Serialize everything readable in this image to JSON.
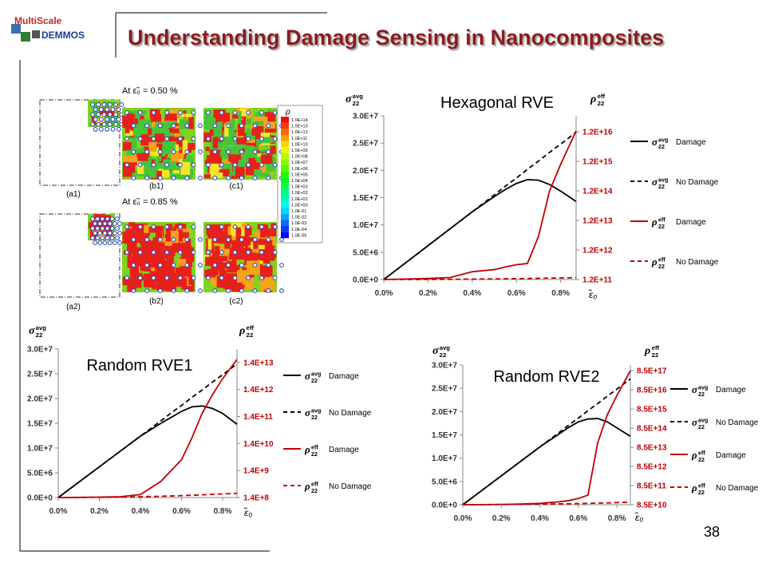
{
  "header": {
    "title": "Understanding Damage Sensing in Nanocomposites",
    "logo_top": "MultiScale",
    "logo_bottom": "DEMMOS"
  },
  "figure": {
    "row1_caption": "At ε̃₀ = 0.50 %",
    "row2_caption": "At ε̃₀ = 0.85 %",
    "panels": [
      "(a1)",
      "(b1)",
      "(c1)",
      "(a2)",
      "(b2)",
      "(c2)"
    ],
    "colorbar": {
      "title": "ρ",
      "labels": [
        "1.0E+14",
        "1.0E+13",
        "1.0E+12",
        "1.0E+11",
        "1.0E+10",
        "1.0E+09",
        "1.0E+08",
        "1.0E+07",
        "1.0E+06",
        "1.0E+05",
        "1.0E+04",
        "1.0E+03",
        "1.0E+02",
        "1.0E+01",
        "1.0E+00",
        "1.0E-01",
        "1.0E-02",
        "1.0E-03",
        "1.0E-04",
        "1.0E-05"
      ]
    }
  },
  "chart_data": [
    {
      "type": "line",
      "title": "Hexagonal RVE",
      "x": [
        0,
        0.1,
        0.2,
        0.3,
        0.4,
        0.5,
        0.55,
        0.6,
        0.65,
        0.7,
        0.75,
        0.8,
        0.87
      ],
      "xlim": [
        0,
        0.87
      ],
      "xticks": [
        {
          "value": 0,
          "label": "0.0%"
        },
        {
          "value": 0.2,
          "label": "0.2%"
        },
        {
          "value": 0.4,
          "label": "0.4%"
        },
        {
          "value": 0.6,
          "label": "0.6%"
        },
        {
          "value": 0.8,
          "label": "0.8%"
        }
      ],
      "x_label": "ε̃₀",
      "ylim": [
        0,
        30000000
      ],
      "yticks": [
        {
          "value": 0,
          "label": "0.0E+0"
        },
        {
          "value": 5000000,
          "label": "5.0E+6"
        },
        {
          "value": 10000000,
          "label": "1.0E+7"
        },
        {
          "value": 15000000,
          "label": "1.5E+7"
        },
        {
          "value": 20000000,
          "label": "2.0E+7"
        },
        {
          "value": 25000000,
          "label": "2.5E+7"
        },
        {
          "value": 30000000,
          "label": "3.0E+7"
        }
      ],
      "y_label": {
        "base": "σ",
        "sup": "avg",
        "sub": "22"
      },
      "y2lim": [
        120000000000,
        42000000000000000
      ],
      "y2_log": true,
      "y2_color": "#c00000",
      "y2ticks": [
        {
          "value": 120000000000,
          "label": "1.2E+11"
        },
        {
          "value": 1200000000000,
          "label": "1.2E+12"
        },
        {
          "value": 12000000000000,
          "label": "1.2E+13"
        },
        {
          "value": 120000000000000,
          "label": "1.2E+14"
        },
        {
          "value": 1200000000000000,
          "label": "1.2E+15"
        },
        {
          "value": 12000000000000000,
          "label": "1.2E+16"
        }
      ],
      "y2_label": {
        "base": "ρ",
        "sup": "eff",
        "sub": "22"
      },
      "series": [
        {
          "name": "Damage",
          "symbol": {
            "base": "σ",
            "sup": "avg",
            "sub": "22"
          },
          "color": "#000000",
          "dash": false,
          "values": [
            0,
            3100000,
            6200000,
            9300000,
            12400000,
            15200000,
            16500000,
            17600000,
            18300000,
            18200000,
            17400000,
            16200000,
            14300000
          ]
        },
        {
          "name": "No Damage",
          "symbol": {
            "base": "σ",
            "sup": "avg",
            "sub": "22"
          },
          "color": "#000000",
          "dash": true,
          "values": [
            0,
            3100000,
            6200000,
            9300000,
            12400000,
            15500000,
            17100000,
            18600000,
            20200000,
            21700000,
            23300000,
            24800000,
            27000000
          ]
        },
        {
          "name": "Damage",
          "symbol": {
            "base": "ρ",
            "sup": "eff",
            "sub": "22"
          },
          "color": "#c00000",
          "dash": false,
          "axis": "y2",
          "values": [
            120000000000,
            125000000000,
            130000000000,
            140000000000,
            220000000000,
            260000000000,
            320000000000,
            380000000000,
            420000000000,
            3500000000000,
            120000000000000,
            950000000000000,
            13000000000000000
          ]
        },
        {
          "name": "No Damage",
          "symbol": {
            "base": "ρ",
            "sup": "eff",
            "sub": "22"
          },
          "color": "#c00000",
          "dash": true,
          "axis": "y2",
          "values": [
            120000000000,
            120000000000,
            121000000000,
            122000000000,
            124000000000,
            126000000000,
            127000000000,
            128000000000,
            130000000000,
            132000000000,
            134000000000,
            136000000000,
            138000000000
          ]
        }
      ]
    },
    {
      "type": "line",
      "title": "Random RVE1",
      "x": [
        0,
        0.1,
        0.2,
        0.3,
        0.4,
        0.5,
        0.55,
        0.6,
        0.65,
        0.7,
        0.75,
        0.8,
        0.87
      ],
      "xlim": [
        0,
        0.87
      ],
      "xticks": [
        {
          "value": 0,
          "label": "0.0%"
        },
        {
          "value": 0.2,
          "label": "0.2%"
        },
        {
          "value": 0.4,
          "label": "0.4%"
        },
        {
          "value": 0.6,
          "label": "0.6%"
        },
        {
          "value": 0.8,
          "label": "0.8%"
        }
      ],
      "x_label": "ε̃₀",
      "ylim": [
        0,
        30000000
      ],
      "yticks": [
        {
          "value": 0,
          "label": "0.0E+0"
        },
        {
          "value": 5000000,
          "label": "5.0E+6"
        },
        {
          "value": 10000000,
          "label": "1.0E+7"
        },
        {
          "value": 15000000,
          "label": "1.5E+7"
        },
        {
          "value": 20000000,
          "label": "2.0E+7"
        },
        {
          "value": 25000000,
          "label": "2.5E+7"
        },
        {
          "value": 30000000,
          "label": "3.0E+7"
        }
      ],
      "y_label": {
        "base": "σ",
        "sup": "avg",
        "sub": "22"
      },
      "y2lim": [
        140000000,
        44000000000000
      ],
      "y2_log": true,
      "y2_color": "#c00000",
      "y2ticks": [
        {
          "value": 140000000,
          "label": "1.4E+8"
        },
        {
          "value": 1400000000,
          "label": "1.4E+9"
        },
        {
          "value": 14000000000,
          "label": "1.4E+10"
        },
        {
          "value": 140000000000,
          "label": "1.4E+11"
        },
        {
          "value": 1400000000000,
          "label": "1.4E+12"
        },
        {
          "value": 14000000000000,
          "label": "1.4E+13"
        }
      ],
      "y2_label": {
        "base": "ρ",
        "sup": "eff",
        "sub": "22"
      },
      "series": [
        {
          "name": "Damage",
          "symbol": {
            "base": "σ",
            "sup": "avg",
            "sub": "22"
          },
          "color": "#000000",
          "dash": false,
          "values": [
            0,
            3100000,
            6200000,
            9300000,
            12400000,
            15000000,
            16200000,
            17400000,
            18300000,
            18500000,
            18000000,
            17000000,
            14800000
          ]
        },
        {
          "name": "No Damage",
          "symbol": {
            "base": "σ",
            "sup": "avg",
            "sub": "22"
          },
          "color": "#000000",
          "dash": true,
          "values": [
            0,
            3100000,
            6200000,
            9300000,
            12400000,
            15500000,
            17100000,
            18600000,
            20200000,
            21700000,
            23300000,
            24800000,
            27000000
          ]
        },
        {
          "name": "Damage",
          "symbol": {
            "base": "ρ",
            "sup": "eff",
            "sub": "22"
          },
          "color": "#c00000",
          "dash": false,
          "axis": "y2",
          "values": [
            140000000,
            142000000,
            145000000,
            150000000,
            180000000,
            560000000,
            1400000000,
            3500000000,
            22000000000,
            180000000000,
            880000000000,
            3500000000000,
            18000000000000
          ]
        },
        {
          "name": "No Damage",
          "symbol": {
            "base": "ρ",
            "sup": "eff",
            "sub": "22"
          },
          "color": "#c00000",
          "dash": true,
          "axis": "y2",
          "values": [
            140000000,
            141000000,
            143000000,
            146000000,
            150000000,
            156000000,
            160000000,
            165000000,
            170000000,
            176000000,
            183000000,
            190000000,
            200000000
          ]
        }
      ]
    },
    {
      "type": "line",
      "title": "Random RVE2",
      "x": [
        0,
        0.1,
        0.2,
        0.3,
        0.4,
        0.5,
        0.55,
        0.6,
        0.65,
        0.7,
        0.75,
        0.8,
        0.87
      ],
      "xlim": [
        0,
        0.87
      ],
      "xticks": [
        {
          "value": 0,
          "label": "0.0%"
        },
        {
          "value": 0.2,
          "label": "0.2%"
        },
        {
          "value": 0.4,
          "label": "0.4%"
        },
        {
          "value": 0.6,
          "label": "0.6%"
        },
        {
          "value": 0.8,
          "label": "0.8%"
        }
      ],
      "x_label": "ε̃₀",
      "ylim": [
        0,
        30000000
      ],
      "yticks": [
        {
          "value": 0,
          "label": "0.0E+0"
        },
        {
          "value": 5000000,
          "label": "5.0E+6"
        },
        {
          "value": 10000000,
          "label": "1.0E+7"
        },
        {
          "value": 15000000,
          "label": "1.5E+7"
        },
        {
          "value": 20000000,
          "label": "2.0E+7"
        },
        {
          "value": 25000000,
          "label": "2.5E+7"
        },
        {
          "value": 30000000,
          "label": "3.0E+7"
        }
      ],
      "y_label": {
        "base": "σ",
        "sup": "avg",
        "sub": "22"
      },
      "y2lim": [
        85000000000,
        1700000000000000000
      ],
      "y2_log": true,
      "y2_color": "#c00000",
      "y2ticks": [
        {
          "value": 85000000000,
          "label": "8.5E+10"
        },
        {
          "value": 850000000000,
          "label": "8.5E+11"
        },
        {
          "value": 8500000000000,
          "label": "8.5E+12"
        },
        {
          "value": 85000000000000,
          "label": "8.5E+13"
        },
        {
          "value": 850000000000000,
          "label": "8.5E+14"
        },
        {
          "value": 8500000000000000,
          "label": "8.5E+15"
        },
        {
          "value": 85000000000000000,
          "label": "8.5E+16"
        },
        {
          "value": 850000000000000000,
          "label": "8.5E+17"
        }
      ],
      "y2_label": {
        "base": "ρ",
        "sup": "eff",
        "sub": "22"
      },
      "series": [
        {
          "name": "Damage",
          "symbol": {
            "base": "σ",
            "sup": "avg",
            "sub": "22"
          },
          "color": "#000000",
          "dash": false,
          "values": [
            0,
            3100000,
            6200000,
            9300000,
            12400000,
            15200000,
            16600000,
            17800000,
            18400000,
            18500000,
            17800000,
            16500000,
            14700000
          ]
        },
        {
          "name": "No Damage",
          "symbol": {
            "base": "σ",
            "sup": "avg",
            "sub": "22"
          },
          "color": "#000000",
          "dash": true,
          "values": [
            0,
            3100000,
            6200000,
            9300000,
            12400000,
            15500000,
            17100000,
            18600000,
            20200000,
            21700000,
            23300000,
            24800000,
            27000000
          ]
        },
        {
          "name": "Damage",
          "symbol": {
            "base": "ρ",
            "sup": "eff",
            "sub": "22"
          },
          "color": "#c00000",
          "dash": false,
          "axis": "y2",
          "values": [
            85000000000,
            86000000000,
            88000000000,
            92000000000,
            100000000000,
            120000000000,
            140000000000,
            180000000000,
            270000000000,
            140000000000000,
            4200000000000000,
            43000000000000000,
            850000000000000000
          ]
        },
        {
          "name": "No Damage",
          "symbol": {
            "base": "ρ",
            "sup": "eff",
            "sub": "22"
          },
          "color": "#c00000",
          "dash": true,
          "axis": "y2",
          "values": [
            85000000000,
            86000000000,
            87000000000,
            89000000000,
            91000000000,
            94000000000,
            96000000000,
            98000000000,
            100000000000,
            103000000000,
            106000000000,
            110000000000,
            115000000000
          ]
        }
      ]
    }
  ],
  "page_number": "38"
}
